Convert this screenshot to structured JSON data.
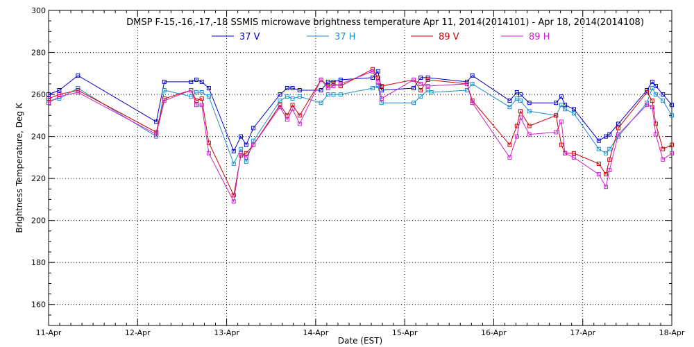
{
  "chart_data": {
    "type": "line",
    "title": "DMSP F-15,-16,-17,-18 SSMIS microwave brightness temperature Apr 11, 2014(2014101) - Apr 18, 2014(2014108)",
    "xlabel": "Date (EST)",
    "ylabel": "Brightness Temperature, Deg K",
    "xlim": [
      0,
      7
    ],
    "ylim": [
      150,
      300
    ],
    "grid": true,
    "legend_position": "top-center",
    "x_ticks": [
      0,
      1,
      2,
      3,
      4,
      5,
      6,
      7
    ],
    "x_tick_labels": [
      "11-Apr",
      "12-Apr",
      "13-Apr",
      "14-Apr",
      "15-Apr",
      "16-Apr",
      "17-Apr",
      "18-Apr"
    ],
    "y_ticks": [
      160,
      180,
      200,
      220,
      240,
      260,
      280,
      300
    ],
    "y_tick_labels": [
      "160",
      "180",
      "200",
      "220",
      "240",
      "260",
      "280",
      "300"
    ],
    "series": [
      {
        "name": "37 V",
        "color": "#0000cc",
        "points": [
          [
            0.0,
            260
          ],
          [
            0.12,
            262
          ],
          [
            0.33,
            269
          ],
          [
            1.21,
            247
          ],
          [
            1.3,
            266
          ],
          [
            1.6,
            266
          ],
          [
            1.66,
            267
          ],
          [
            1.72,
            266
          ],
          [
            1.8,
            263
          ],
          [
            2.08,
            233
          ],
          [
            2.16,
            240
          ],
          [
            2.22,
            236
          ],
          [
            2.3,
            244
          ],
          [
            2.6,
            260
          ],
          [
            2.68,
            263
          ],
          [
            2.74,
            263
          ],
          [
            2.82,
            262
          ],
          [
            3.06,
            262
          ],
          [
            3.14,
            266
          ],
          [
            3.2,
            266
          ],
          [
            3.28,
            267
          ],
          [
            3.64,
            268
          ],
          [
            3.7,
            271
          ],
          [
            3.74,
            262
          ],
          [
            4.1,
            263
          ],
          [
            4.18,
            268
          ],
          [
            4.26,
            268
          ],
          [
            4.7,
            266
          ],
          [
            4.76,
            269
          ],
          [
            5.18,
            257
          ],
          [
            5.26,
            261
          ],
          [
            5.3,
            260
          ],
          [
            5.4,
            256
          ],
          [
            5.7,
            256
          ],
          [
            5.76,
            259
          ],
          [
            5.8,
            255
          ],
          [
            5.9,
            253
          ],
          [
            6.18,
            238
          ],
          [
            6.26,
            240
          ],
          [
            6.3,
            241
          ],
          [
            6.4,
            246
          ],
          [
            6.72,
            262
          ],
          [
            6.78,
            266
          ],
          [
            6.82,
            264
          ],
          [
            6.9,
            260
          ],
          [
            7.0,
            255
          ]
        ]
      },
      {
        "name": "37 H",
        "color": "#1a8fd0",
        "points": [
          [
            0.0,
            257
          ],
          [
            0.12,
            258
          ],
          [
            0.33,
            263
          ],
          [
            1.21,
            240
          ],
          [
            1.3,
            262
          ],
          [
            1.6,
            259
          ],
          [
            1.66,
            261
          ],
          [
            1.72,
            261
          ],
          [
            1.8,
            259
          ],
          [
            2.08,
            227
          ],
          [
            2.16,
            234
          ],
          [
            2.22,
            228
          ],
          [
            2.3,
            238
          ],
          [
            2.6,
            257
          ],
          [
            2.68,
            259
          ],
          [
            2.74,
            258
          ],
          [
            2.82,
            259
          ],
          [
            3.06,
            256
          ],
          [
            3.14,
            260
          ],
          [
            3.2,
            260
          ],
          [
            3.28,
            260
          ],
          [
            3.64,
            263
          ],
          [
            3.7,
            264
          ],
          [
            3.74,
            256
          ],
          [
            4.1,
            256
          ],
          [
            4.18,
            259
          ],
          [
            4.26,
            262
          ],
          [
            4.3,
            261
          ],
          [
            4.7,
            262
          ],
          [
            4.76,
            265
          ],
          [
            5.18,
            254
          ],
          [
            5.26,
            258
          ],
          [
            5.3,
            257
          ],
          [
            5.4,
            252
          ],
          [
            5.7,
            250
          ],
          [
            5.76,
            255
          ],
          [
            5.8,
            253
          ],
          [
            5.9,
            251
          ],
          [
            6.18,
            234
          ],
          [
            6.26,
            232
          ],
          [
            6.3,
            234
          ],
          [
            6.4,
            240
          ],
          [
            6.72,
            256
          ],
          [
            6.78,
            263
          ],
          [
            6.82,
            260
          ],
          [
            6.9,
            257
          ],
          [
            7.0,
            250
          ]
        ]
      },
      {
        "name": "89 V",
        "color": "#cc0000",
        "points": [
          [
            0.0,
            258
          ],
          [
            0.12,
            260
          ],
          [
            0.33,
            262
          ],
          [
            1.21,
            242
          ],
          [
            1.3,
            258
          ],
          [
            1.6,
            262
          ],
          [
            1.66,
            257
          ],
          [
            1.72,
            258
          ],
          [
            1.8,
            237
          ],
          [
            2.08,
            212
          ],
          [
            2.16,
            231
          ],
          [
            2.22,
            232
          ],
          [
            2.3,
            236
          ],
          [
            2.6,
            255
          ],
          [
            2.68,
            250
          ],
          [
            2.74,
            255
          ],
          [
            2.82,
            250
          ],
          [
            3.06,
            267
          ],
          [
            3.14,
            264
          ],
          [
            3.2,
            265
          ],
          [
            3.28,
            264
          ],
          [
            3.64,
            272
          ],
          [
            3.7,
            268
          ],
          [
            3.74,
            264
          ],
          [
            4.1,
            267
          ],
          [
            4.18,
            262
          ],
          [
            4.26,
            267
          ],
          [
            4.7,
            265
          ],
          [
            4.76,
            257
          ],
          [
            5.18,
            236
          ],
          [
            5.26,
            245
          ],
          [
            5.3,
            252
          ],
          [
            5.4,
            245
          ],
          [
            5.7,
            250
          ],
          [
            5.76,
            236
          ],
          [
            5.8,
            232
          ],
          [
            5.9,
            232
          ],
          [
            6.18,
            227
          ],
          [
            6.26,
            222
          ],
          [
            6.3,
            229
          ],
          [
            6.4,
            244
          ],
          [
            6.72,
            261
          ],
          [
            6.78,
            257
          ],
          [
            6.82,
            246
          ],
          [
            6.9,
            234
          ],
          [
            7.0,
            236
          ]
        ]
      },
      {
        "name": "89 H",
        "color": "#cc22cc",
        "points": [
          [
            0.0,
            256
          ],
          [
            0.12,
            259
          ],
          [
            0.33,
            261
          ],
          [
            1.21,
            241
          ],
          [
            1.3,
            257
          ],
          [
            1.6,
            262
          ],
          [
            1.66,
            255
          ],
          [
            1.72,
            255
          ],
          [
            1.8,
            232
          ],
          [
            2.08,
            209
          ],
          [
            2.16,
            232
          ],
          [
            2.22,
            230
          ],
          [
            2.3,
            236
          ],
          [
            2.6,
            254
          ],
          [
            2.68,
            248
          ],
          [
            2.74,
            253
          ],
          [
            2.82,
            246
          ],
          [
            3.06,
            267
          ],
          [
            3.14,
            263
          ],
          [
            3.2,
            264
          ],
          [
            3.28,
            265
          ],
          [
            3.64,
            271
          ],
          [
            3.7,
            266
          ],
          [
            3.74,
            258
          ],
          [
            4.1,
            267
          ],
          [
            4.18,
            265
          ],
          [
            4.26,
            264
          ],
          [
            4.7,
            265
          ],
          [
            4.76,
            256
          ],
          [
            5.18,
            230
          ],
          [
            5.26,
            240
          ],
          [
            5.3,
            249
          ],
          [
            5.4,
            241
          ],
          [
            5.7,
            242
          ],
          [
            5.76,
            247
          ],
          [
            5.8,
            232
          ],
          [
            5.9,
            230
          ],
          [
            6.18,
            222
          ],
          [
            6.26,
            216
          ],
          [
            6.3,
            224
          ],
          [
            6.4,
            241
          ],
          [
            6.72,
            255
          ],
          [
            6.78,
            254
          ],
          [
            6.82,
            241
          ],
          [
            6.9,
            229
          ],
          [
            7.0,
            232
          ]
        ]
      }
    ]
  }
}
